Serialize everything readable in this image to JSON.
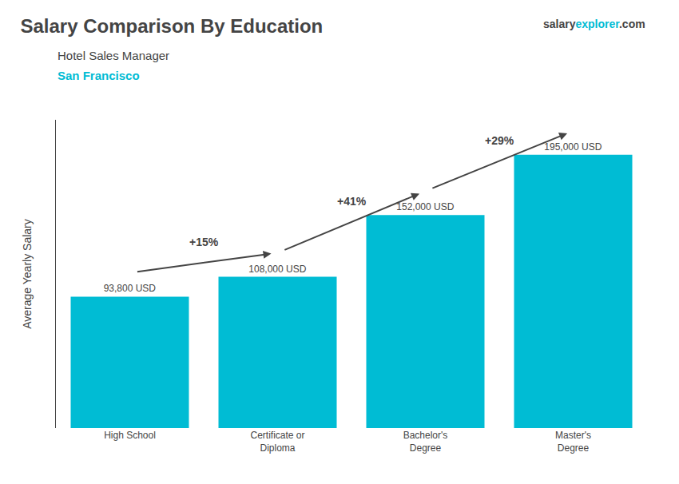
{
  "chart_data": {
    "type": "bar",
    "title": "Salary Comparison By Education",
    "subtitle": "Hotel Sales Manager",
    "city": "San Francisco",
    "logo": [
      "salary",
      "explorer",
      ".com"
    ],
    "ylabel": "Average Yearly Salary",
    "categories": [
      "High School",
      "Certificate or\nDiploma",
      "Bachelor's\nDegree",
      "Master's\nDegree"
    ],
    "values": [
      93800,
      108000,
      152000,
      195000
    ],
    "value_labels": [
      "93,800 USD",
      "108,000 USD",
      "152,000 USD",
      "195,000 USD"
    ],
    "data_labels": true,
    "annotations": [
      "+15%",
      "+41%",
      "+29%"
    ],
    "color": "#00bcd4",
    "ylim": [
      0,
      220000
    ],
    "tick_labels": "x",
    "grid": false
  }
}
